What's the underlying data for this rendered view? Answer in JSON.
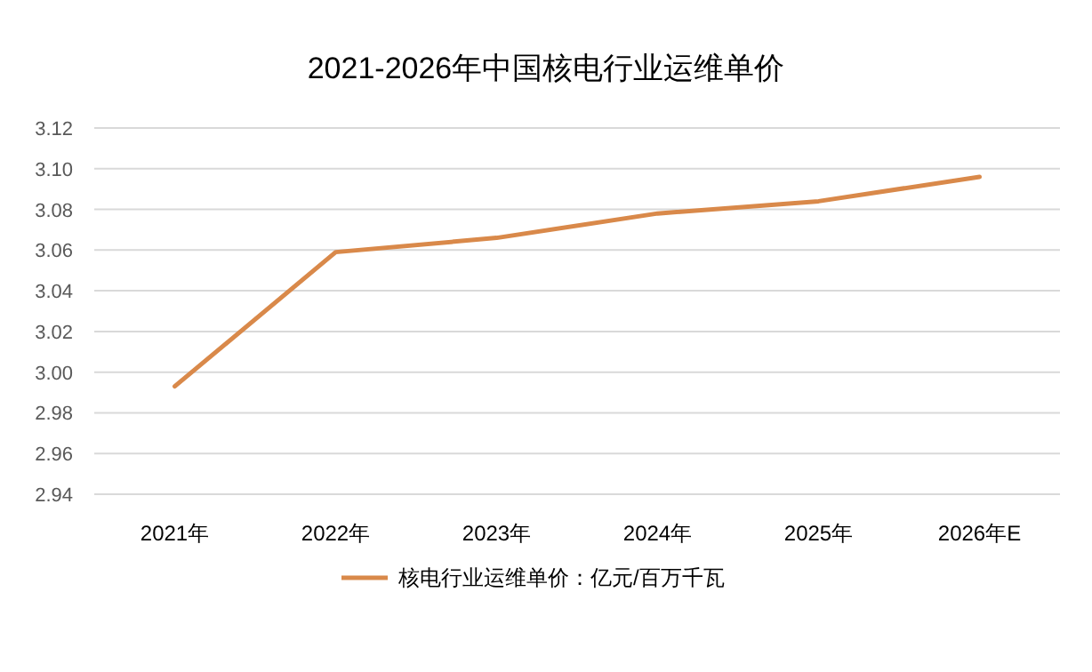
{
  "chart_data": {
    "type": "line",
    "title": "2021-2026年中国核电行业运维单价",
    "categories": [
      "2021年",
      "2022年",
      "2023年",
      "2024年",
      "2025年",
      "2026年E"
    ],
    "series": [
      {
        "name": "核电行业运维单价：亿元/百万千瓦",
        "color": "#d9894a",
        "values": [
          2.993,
          3.059,
          3.066,
          3.078,
          3.084,
          3.096
        ]
      }
    ],
    "ylim": [
      2.94,
      3.12
    ],
    "yticks": [
      2.94,
      2.96,
      2.98,
      {
        "value": 3.0,
        "label": "3.00"
      },
      3.02,
      3.04,
      3.06,
      3.08,
      {
        "value": 3.1,
        "label": "3.10"
      },
      3.12
    ],
    "grid": "y",
    "legend": "bottom",
    "marker": "none",
    "line_style": "solid"
  }
}
